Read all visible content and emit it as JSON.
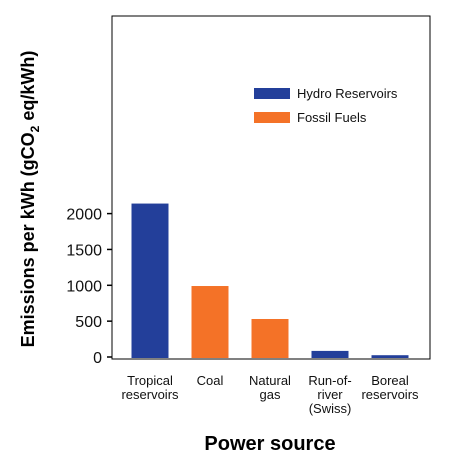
{
  "chart_data": {
    "type": "bar",
    "categories": [
      [
        "Tropical",
        "reservoirs"
      ],
      [
        "Coal"
      ],
      [
        "Natural",
        "gas"
      ],
      [
        "Run-of-",
        "river",
        "(Swiss)"
      ],
      [
        "Boreal",
        "reservoirs"
      ]
    ],
    "values": [
      2140,
      990,
      530,
      85,
      25
    ],
    "bar_series": [
      "Hydro Reservoirs",
      "Fossil Fuels",
      "Fossil Fuels",
      "Hydro Reservoirs",
      "Hydro Reservoirs"
    ],
    "series": [
      {
        "name": "Hydro Reservoirs",
        "color": "#233f9a"
      },
      {
        "name": "Fossil Fuels",
        "color": "#f47227"
      }
    ],
    "xlabel": "Power source",
    "ylabel": "Emissions per kWh (gCO2 eq/kWh)",
    "ylabel_parts": {
      "before": "Emissions per kWh (gCO",
      "sub": "2",
      "after": " eq/kWh)"
    },
    "ylim": [
      0,
      2400
    ],
    "yticks": [
      0,
      500,
      1000,
      1500,
      2000
    ],
    "legend_position": "top-right",
    "grid": false
  }
}
